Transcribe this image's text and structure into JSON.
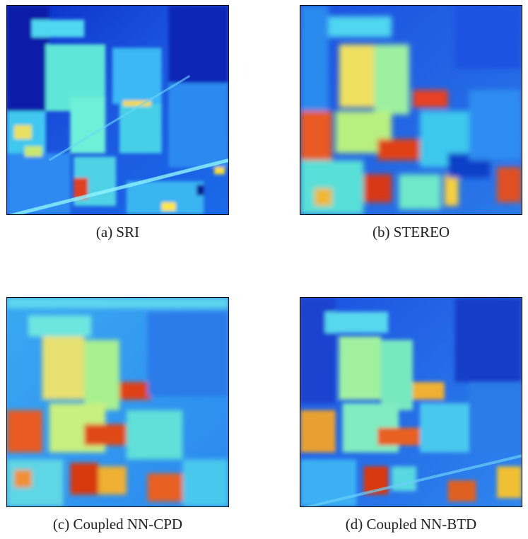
{
  "panels": [
    {
      "caption": "(a) SRI"
    },
    {
      "caption": "(b) STEREO"
    },
    {
      "caption": "(c) Coupled NN-CPD"
    },
    {
      "caption": "(d) Coupled NN-BTD"
    }
  ],
  "colormap": [
    "#00008f",
    "#0000ff",
    "#0080ff",
    "#00ffff",
    "#80ff80",
    "#ffff00",
    "#ff8000",
    "#ff0000",
    "#800000"
  ]
}
